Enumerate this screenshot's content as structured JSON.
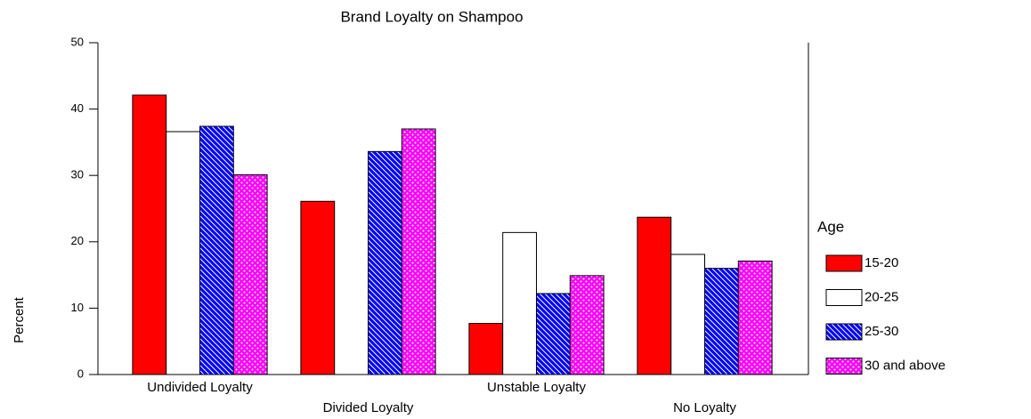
{
  "chart_data": {
    "type": "bar",
    "title": "Brand Loyalty on Shampoo",
    "y_label": "Percent",
    "categories": [
      "Undivided Loyalty",
      "Divided Loyalty",
      "Unstable Loyalty",
      "No Loyalty"
    ],
    "legend_title": "Age",
    "legend": "right",
    "series": [
      {
        "name": "15-20",
        "color": "#ff0000",
        "values": [
          42.1,
          26.1,
          7.7,
          23.7
        ]
      },
      {
        "name": "20-25",
        "color": "#ffffff",
        "values": [
          36.6,
          null,
          21.4,
          18.1
        ]
      },
      {
        "name": "25-30",
        "color": "#0000ff",
        "pattern": "diagonal",
        "values": [
          37.4,
          33.6,
          12.2,
          16.0
        ]
      },
      {
        "name": "30 and above",
        "color": "#ff00ff",
        "pattern": "dots",
        "values": [
          30.1,
          37.0,
          14.9,
          17.1
        ]
      }
    ],
    "ylim": [
      0,
      50
    ],
    "yticks": [
      0,
      10,
      20,
      30,
      40,
      50
    ]
  }
}
